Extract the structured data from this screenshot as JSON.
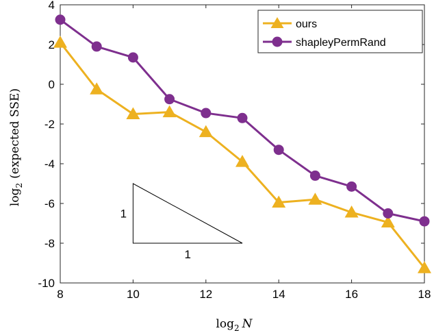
{
  "chart_data": {
    "type": "line",
    "xlabel": "log2 N",
    "ylabel": "log2 (expected SSE)",
    "xlim": [
      8,
      18
    ],
    "ylim": [
      -10,
      4
    ],
    "xticks": [
      8,
      10,
      12,
      14,
      16,
      18
    ],
    "yticks": [
      -10,
      -8,
      -6,
      -4,
      -2,
      0,
      2,
      4
    ],
    "grid": false,
    "legend_position": "top-right",
    "series": [
      {
        "name": "ours",
        "color": "#EDB120",
        "marker": "triangle",
        "x": [
          8,
          9,
          10,
          11,
          12,
          13,
          14,
          15,
          16,
          17,
          18
        ],
        "y": [
          2.1,
          -0.25,
          -1.5,
          -1.4,
          -2.4,
          -3.9,
          -5.95,
          -5.8,
          -6.45,
          -6.95,
          -9.25
        ]
      },
      {
        "name": "shapleyPermRand",
        "color": "#7E2F8E",
        "marker": "circle",
        "x": [
          8,
          9,
          10,
          11,
          12,
          13,
          14,
          15,
          16,
          17,
          18
        ],
        "y": [
          3.25,
          1.9,
          1.35,
          -0.75,
          -1.45,
          -1.7,
          -3.3,
          -4.6,
          -5.15,
          -6.5,
          -6.9
        ]
      }
    ],
    "annotation": {
      "type": "slope-triangle",
      "vertical_label": "1",
      "horizontal_label": "1",
      "x_left": 10,
      "x_right": 13,
      "y_top": -5,
      "y_bottom": -8
    }
  }
}
